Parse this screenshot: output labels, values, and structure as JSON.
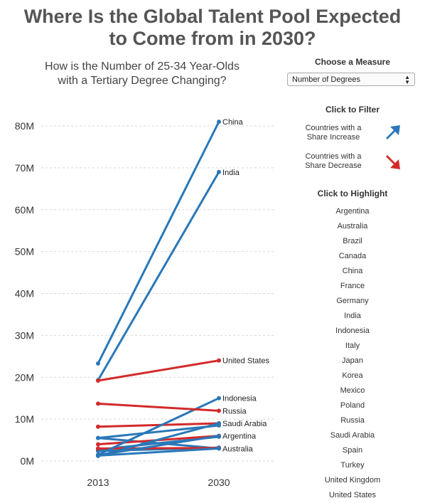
{
  "title_line1": "Where Is the Global Talent Pool Expected",
  "title_line2": "to Come from in 2030?",
  "subtitle_line1": "How is the Number of 25-34 Year-Olds",
  "subtitle_line2": "with a Tertiary Degree Changing?",
  "controls": {
    "measure_heading": "Choose a Measure",
    "measure_value": "Number of Degrees",
    "filter_heading": "Click to Filter",
    "filter_increase_line1": "Countries with a",
    "filter_increase_line2": "Share Increase",
    "filter_decrease_line1": "Countries with a",
    "filter_decrease_line2": "Share Decrease",
    "increase_color": "#2a78b8",
    "decrease_color": "#d32a2a",
    "highlight_heading": "Click to Highlight",
    "countries": [
      "Argentina",
      "Australia",
      "Brazil",
      "Canada",
      "China",
      "France",
      "Germany",
      "India",
      "Indonesia",
      "Italy",
      "Japan",
      "Korea",
      "Mexico",
      "Poland",
      "Russia",
      "Saudi Arabia",
      "Spain",
      "Turkey",
      "United Kingdom",
      "United States"
    ]
  },
  "chart_data": {
    "type": "line",
    "x": [
      "2013",
      "2030"
    ],
    "yticks": [
      "0M",
      "10M",
      "20M",
      "30M",
      "40M",
      "50M",
      "60M",
      "70M",
      "80M"
    ],
    "ylim": [
      0,
      80000000
    ],
    "grid": true,
    "colors": {
      "increase": "#2a78b8",
      "decrease": "#d32a2a"
    },
    "series": [
      {
        "name": "China",
        "label": "China",
        "trend": "increase",
        "values": [
          23300000,
          81000000
        ]
      },
      {
        "name": "India",
        "label": "India",
        "trend": "increase",
        "values": [
          19300000,
          69000000
        ]
      },
      {
        "name": "United States",
        "label": "United States",
        "trend": "decrease",
        "values": [
          19200000,
          24000000
        ]
      },
      {
        "name": "Indonesia",
        "label": "Indonesia",
        "trend": "increase",
        "values": [
          1500000,
          15000000
        ]
      },
      {
        "name": "Russia",
        "label": "Russia",
        "trend": "decrease",
        "values": [
          13700000,
          12000000
        ]
      },
      {
        "name": "Saudi Arabia",
        "label": "Saudi Arabia",
        "trend": "increase",
        "values": [
          1200000,
          9000000
        ]
      },
      {
        "name": "Argentina",
        "label": "Argentina",
        "trend": "increase",
        "values": [
          1400000,
          6000000
        ]
      },
      {
        "name": "Australia",
        "label": "Australia",
        "trend": "increase",
        "values": [
          1300000,
          3000000
        ]
      },
      {
        "name": "Brazil",
        "label": "",
        "trend": "increase",
        "values": [
          5500000,
          8500000
        ]
      },
      {
        "name": "Japan",
        "label": "",
        "trend": "decrease",
        "values": [
          8200000,
          9000000
        ]
      },
      {
        "name": "Korea",
        "label": "",
        "trend": "increase",
        "values": [
          5500000,
          3000000
        ]
      },
      {
        "name": "Mexico",
        "label": "",
        "trend": "increase",
        "values": [
          2700000,
          5800000
        ]
      },
      {
        "name": "Turkey",
        "label": "",
        "trend": "increase",
        "values": [
          2400000,
          3200000
        ]
      },
      {
        "name": "United Kingdom",
        "label": "",
        "trend": "decrease",
        "values": [
          4000000,
          6000000
        ]
      },
      {
        "name": "Germany",
        "label": "",
        "trend": "decrease",
        "values": [
          3000000,
          3100000
        ]
      }
    ]
  }
}
